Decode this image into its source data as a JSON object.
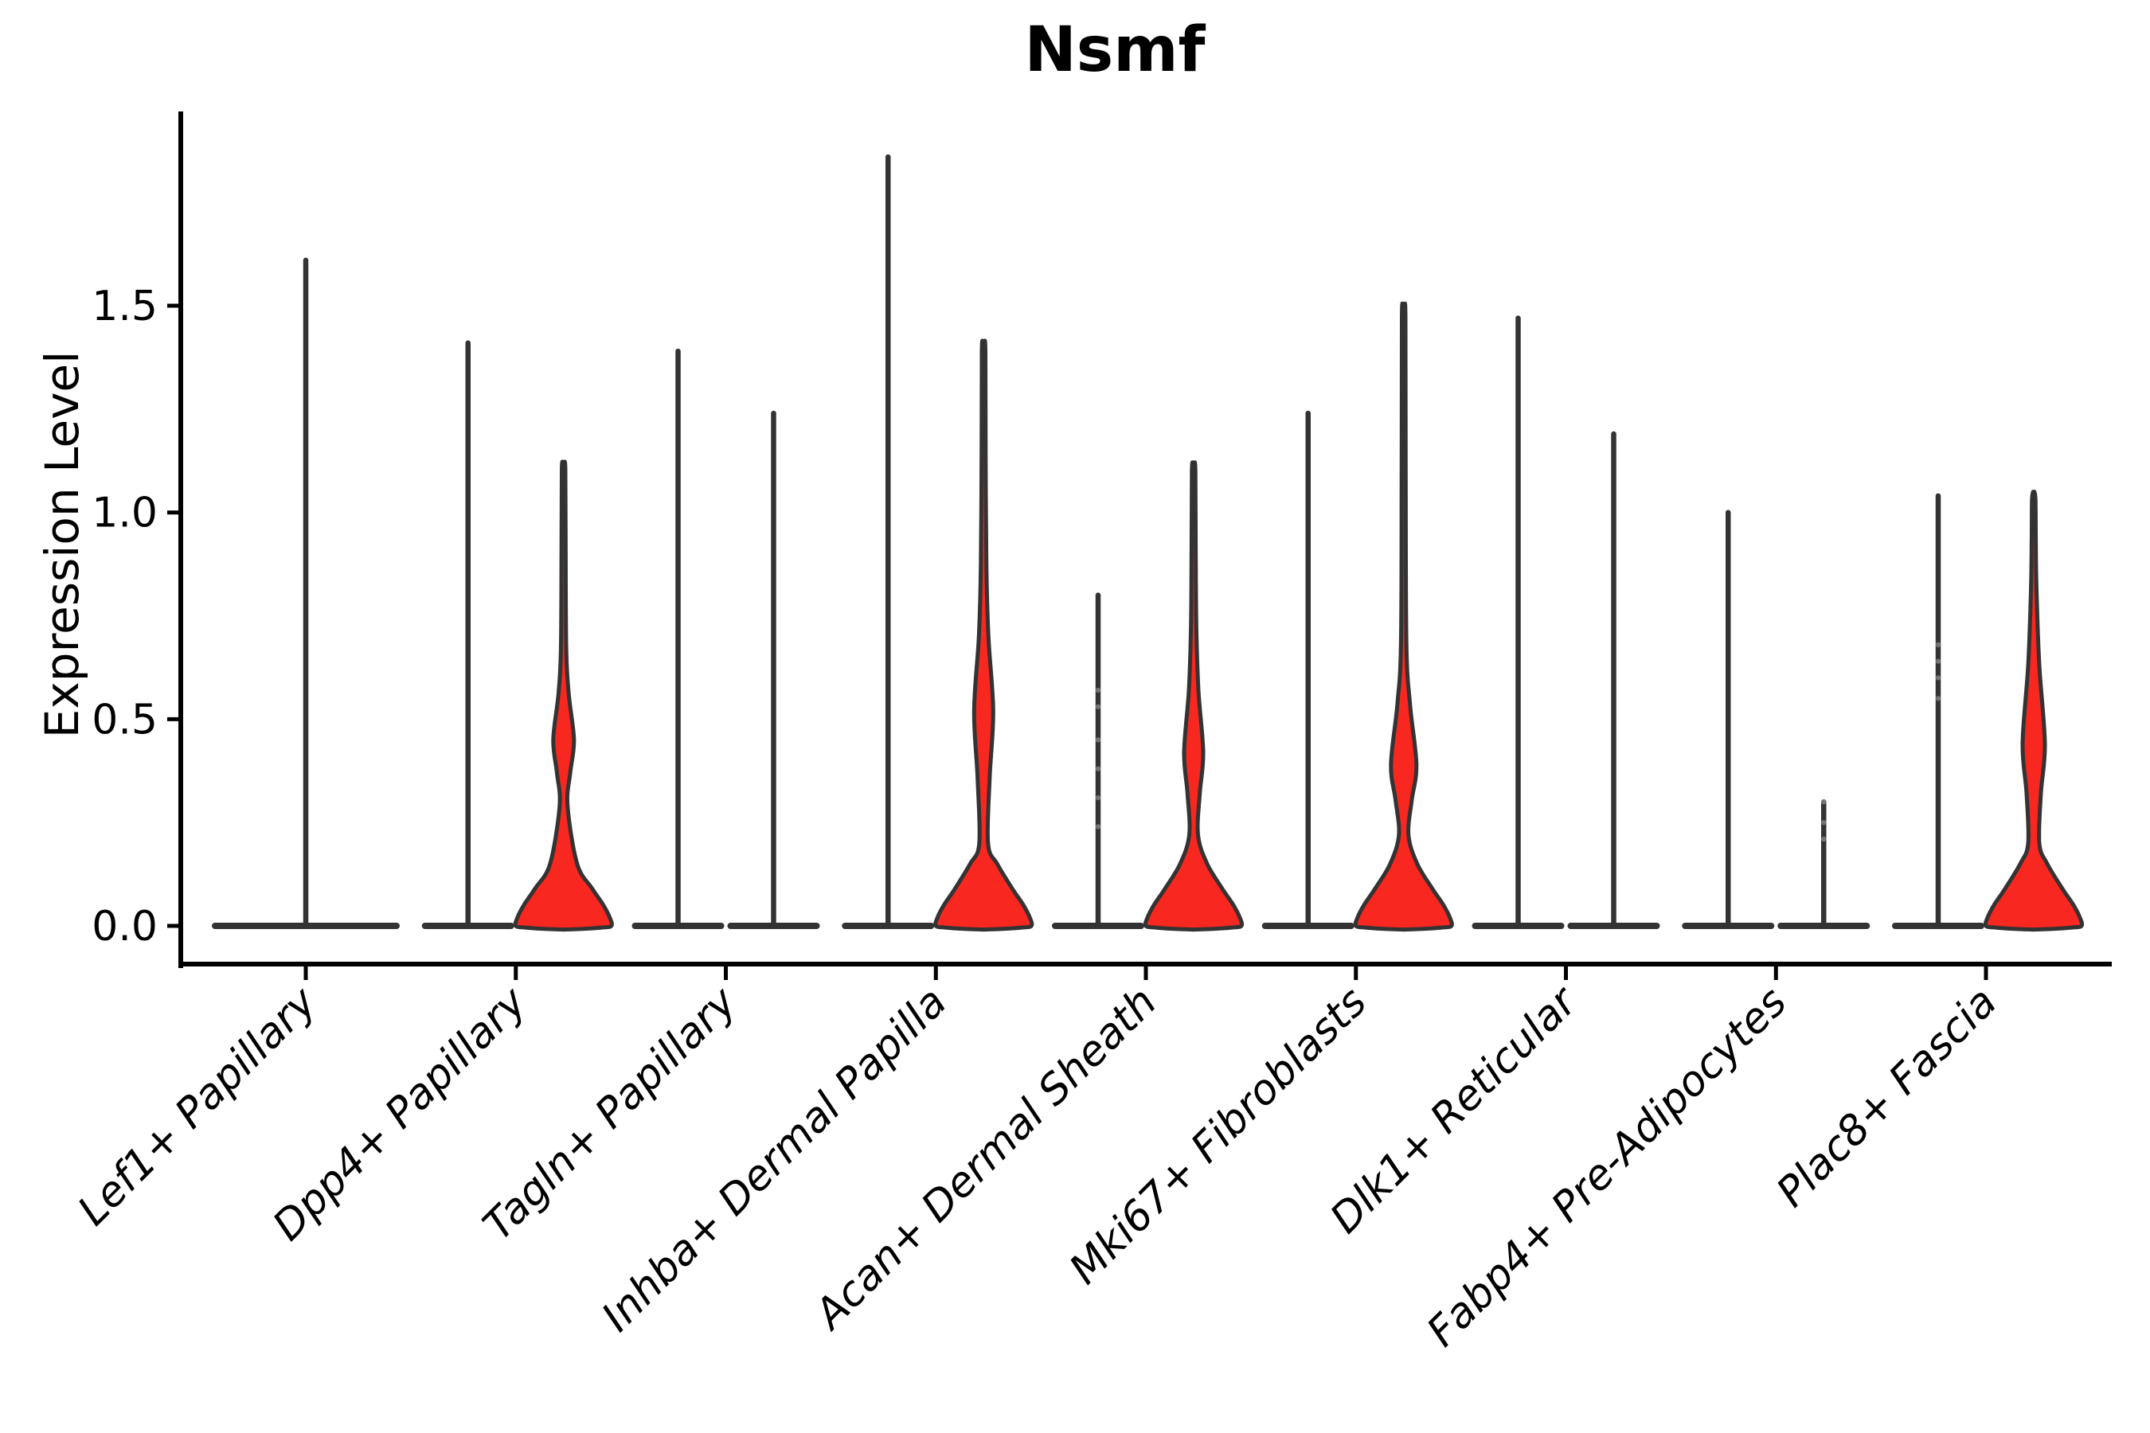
{
  "chart_data": {
    "type": "violin",
    "title": "Nsmf",
    "ylabel": "Expression Level",
    "xlabel": "",
    "ylim": [
      -0.09,
      1.96
    ],
    "yticks": [
      "0.0",
      "0.5",
      "1.0",
      "1.5"
    ],
    "ytick_values": [
      0.0,
      0.5,
      1.0,
      1.5
    ],
    "grid": false,
    "legend": "none",
    "violin_fill_color": "#f8271f",
    "violin_stroke_color": "#333333",
    "axis_color": "#000000",
    "dot_color": "#8a8a8a",
    "categories": [
      "Lef1+ Papillary",
      "Dpp4+ Papillary",
      "Tagln+ Papillary",
      "Inhba+ Dermal Papilla",
      "Acan+ Dermal Sheath",
      "Mki67+ Fibroblasts",
      "Dlk1+ Reticular",
      "Fabp4+ Pre-Adipocytes",
      "Plac8+ Fascia"
    ],
    "groups": [
      {
        "label": "Lef1+ Papillary",
        "violins": [
          {
            "side": "center",
            "type": "spike",
            "max": 1.61,
            "span": "full"
          }
        ]
      },
      {
        "label": "Dpp4+ Papillary",
        "violins": [
          {
            "side": "left",
            "type": "spike",
            "max": 1.41
          },
          {
            "side": "right",
            "type": "density",
            "max": 1.12,
            "red_top": 0.67,
            "bulge_peak": 0.45,
            "bulge_halfwidth": 13,
            "waist": 0.29,
            "waist_halfwidth": 5,
            "base_halfwidth": 60
          }
        ]
      },
      {
        "label": "Tagln+ Papillary",
        "violins": [
          {
            "side": "left",
            "type": "spike",
            "max": 1.39
          },
          {
            "side": "right",
            "type": "spike",
            "max": 1.24
          }
        ]
      },
      {
        "label": "Inhba+ Dermal Papilla",
        "violins": [
          {
            "side": "left",
            "type": "spike",
            "max": 1.86
          },
          {
            "side": "right",
            "type": "density",
            "max": 1.41,
            "red_top": 0.88,
            "bulge_peak": 0.52,
            "bulge_halfwidth": 12,
            "waist": 0.2,
            "waist_halfwidth": 5.5,
            "base_halfwidth": 60
          }
        ]
      },
      {
        "label": "Acan+ Dermal Sheath",
        "violins": [
          {
            "side": "left",
            "type": "spike",
            "max": 0.8,
            "dots": [
              0.24,
              0.31,
              0.38,
              0.45,
              0.53,
              0.57
            ]
          },
          {
            "side": "right",
            "type": "density",
            "max": 1.12,
            "red_top": 0.72,
            "bulge_peak": 0.42,
            "bulge_halfwidth": 12,
            "waist": 0.22,
            "waist_halfwidth": 5.5,
            "base_halfwidth": 60
          }
        ]
      },
      {
        "label": "Mki67+ Fibroblasts",
        "violins": [
          {
            "side": "left",
            "type": "spike",
            "max": 1.24
          },
          {
            "side": "right",
            "type": "density",
            "max": 1.49,
            "red_top": 0.68,
            "bulge_peak": 0.39,
            "bulge_halfwidth": 16,
            "waist": 0.22,
            "waist_halfwidth": 6,
            "base_halfwidth": 60
          }
        ]
      },
      {
        "label": "Dlk1+ Reticular",
        "violins": [
          {
            "side": "left",
            "type": "spike",
            "max": 1.47
          },
          {
            "side": "right",
            "type": "spike",
            "max": 1.19
          }
        ]
      },
      {
        "label": "Fabp4+ Pre-Adipocytes",
        "violins": [
          {
            "side": "left",
            "type": "spike",
            "max": 1.0
          },
          {
            "side": "right",
            "type": "spike",
            "max": 0.3,
            "dots": [
              0.21,
              0.25,
              0.3
            ]
          }
        ]
      },
      {
        "label": "Plac8+ Fascia",
        "violins": [
          {
            "side": "left",
            "type": "spike",
            "max": 1.04,
            "dots": [
              0.55,
              0.6,
              0.64,
              0.68
            ]
          },
          {
            "side": "right",
            "type": "density",
            "max": 1.05,
            "red_top": 0.82,
            "bulge_peak": 0.44,
            "bulge_halfwidth": 14,
            "waist": 0.2,
            "waist_halfwidth": 7,
            "base_halfwidth": 60
          }
        ]
      }
    ]
  }
}
